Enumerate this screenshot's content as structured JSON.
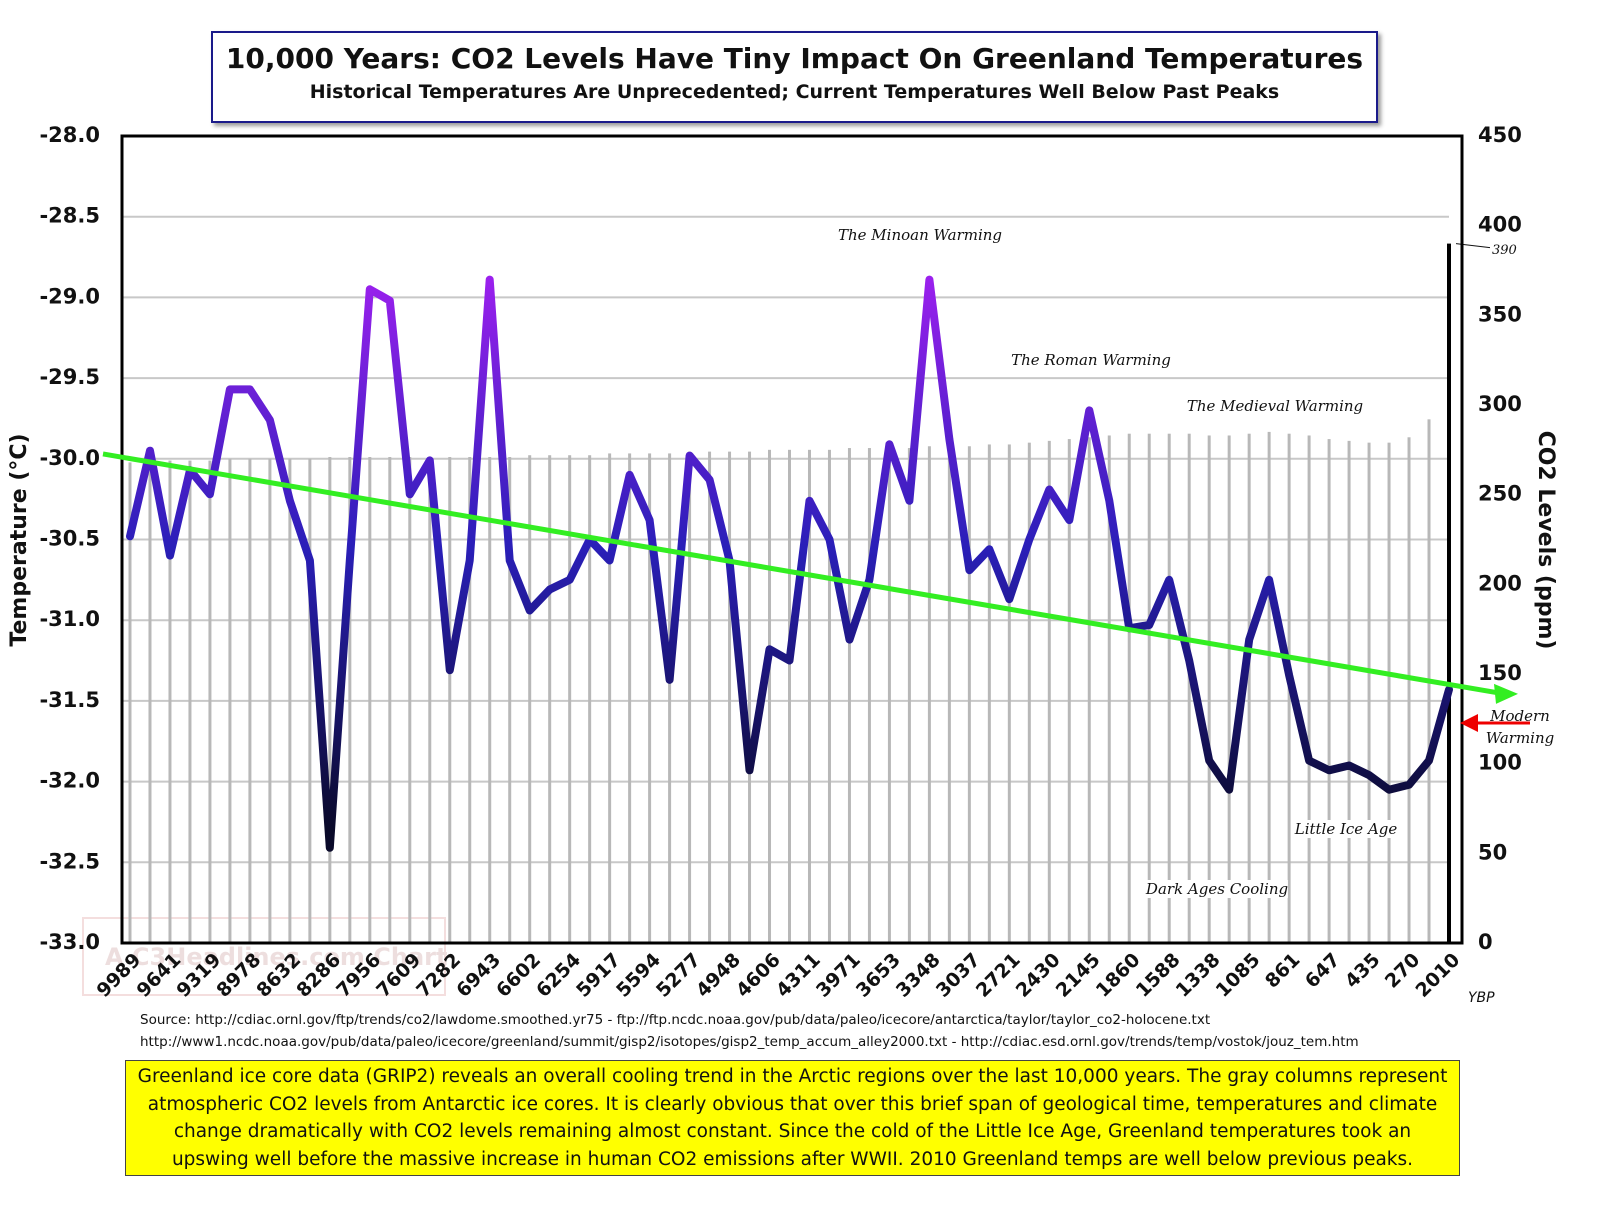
{
  "chart_data": {
    "type": "line",
    "title": "10,000 Years: CO2 Levels Have Tiny Impact On Greenland Temperatures",
    "subtitle": "Historical Temperatures Are Unprecedented; Current Temperatures Well Below Past Peaks",
    "y_label": "Temperature (°C)",
    "y2_label": "CO2 Levels (ppm)",
    "x_label": "YBP",
    "watermark": "A C3Headlines.com Chart",
    "categories": [
      "9989",
      null,
      "9641",
      null,
      "9319",
      null,
      "8978",
      null,
      "8632",
      null,
      "8286",
      null,
      "7956",
      null,
      "7609",
      null,
      "7282",
      null,
      "6943",
      null,
      "6602",
      null,
      "6254",
      null,
      "5917",
      null,
      "5594",
      null,
      "5277",
      null,
      "4948",
      null,
      "4606",
      null,
      "4311",
      null,
      "3971",
      null,
      "3653",
      null,
      "3348",
      null,
      "3037",
      null,
      "2721",
      null,
      "2430",
      null,
      "2145",
      null,
      "1860",
      null,
      "1588",
      null,
      "1338",
      null,
      "1085",
      null,
      "861",
      null,
      "647",
      null,
      "435",
      null,
      "270",
      null,
      "2010"
    ],
    "series": [
      {
        "color": "#2a1fb8",
        "gradient": [
          "#a020f0",
          "#2a1fb8",
          "#0a0a2a"
        ],
        "values": [
          -30.48,
          -29.95,
          -30.6,
          -30.07,
          -30.22,
          -29.57,
          -29.57,
          -29.76,
          -30.26,
          -30.63,
          -32.41,
          -30.63,
          -28.95,
          -29.02,
          -30.22,
          -30.01,
          -31.31,
          -30.63,
          -28.89,
          -30.63,
          -30.94,
          -30.81,
          -30.75,
          -30.5,
          -30.63,
          -30.1,
          -30.38,
          -31.37,
          -29.98,
          -30.13,
          -30.63,
          -31.93,
          -31.18,
          -31.25,
          -30.26,
          -30.5,
          -31.12,
          -30.75,
          -29.91,
          -30.26,
          -28.89,
          -29.88,
          -30.69,
          -30.56,
          -30.87,
          -30.5,
          -30.19,
          -30.38,
          -29.7,
          -30.26,
          -31.05,
          -31.03,
          -30.75,
          -31.25,
          -31.87,
          -32.05,
          -31.12,
          -30.75,
          -31.34,
          -31.87,
          -31.93,
          -31.9,
          -31.96,
          -32.05,
          -32.02,
          -31.87,
          -31.43
        ]
      },
      {
        "axis": "y2",
        "color": "#b8b8b8",
        "last_color": "#000000",
        "values": [
          268,
          268,
          269,
          269,
          269,
          270,
          270,
          270,
          270,
          270,
          271,
          271,
          271,
          271,
          271,
          271,
          271,
          271,
          271,
          271,
          272,
          272,
          272,
          272,
          273,
          273,
          273,
          273,
          274,
          274,
          274,
          274,
          275,
          275,
          275,
          275,
          276,
          276,
          276,
          276,
          277,
          277,
          277,
          278,
          278,
          279,
          280,
          281,
          282,
          283,
          284,
          284,
          284,
          284,
          283,
          283,
          284,
          285,
          284,
          283,
          281,
          280,
          279,
          279,
          282,
          292,
          390
        ],
        "value_label": "390"
      }
    ],
    "trend": {
      "color": "#33ee22",
      "values": [
        -29.97,
        -31.45
      ]
    },
    "ylim": [
      -33,
      -28
    ],
    "yticks": [
      {
        "value": -33,
        "label": "-33.0"
      },
      {
        "value": -32.5,
        "label": "-32.5"
      },
      {
        "value": -32,
        "label": "-32.0"
      },
      {
        "value": -31.5,
        "label": "-31.5"
      },
      {
        "value": -31,
        "label": "-31.0"
      },
      {
        "value": -30.5,
        "label": "-30.5"
      },
      {
        "value": -30,
        "label": "-30.0"
      },
      {
        "value": -29.5,
        "label": "-29.5"
      },
      {
        "value": -29,
        "label": "-29.0"
      },
      {
        "value": -28.5,
        "label": "-28.5"
      },
      {
        "value": -28,
        "label": "-28.0"
      }
    ],
    "y2lim": [
      0,
      450
    ],
    "y2ticks": [
      0,
      50,
      100,
      150,
      200,
      250,
      300,
      350,
      400,
      450
    ],
    "grid": true,
    "annotations": [
      "The Minoan Warming",
      "The Roman Warming",
      "The Medieval Warming",
      "Little Ice Age",
      "Dark Ages Cooling",
      "Modern Warming"
    ],
    "sources": [
      "Source:  http://cdiac.ornl.gov/ftp/trends/co2/lawdome.smoothed.yr75  -  ftp://ftp.ncdc.noaa.gov/pub/data/paleo/icecore/antarctica/taylor/taylor_co2-holocene.txt",
      "http://www1.ncdc.noaa.gov/pub/data/paleo/icecore/greenland/summit/gisp2/isotopes/gisp2_temp_accum_alley2000.txt  -  http://cdiac.esd.ornl.gov/trends/temp/vostok/jouz_tem.htm"
    ],
    "caption": "Greenland ice core data (GRIP2) reveals an overall cooling trend in the Arctic regions over the last 10,000 years. The gray columns represent atmospheric CO2 levels from Antarctic ice cores. It is clearly obvious that over this brief span of geological time, temperatures and climate change dramatically with CO2 levels remaining almost constant.  Since the cold of the Little Ice Age, Greenland temperatures took an upswing well before the massive increase in human CO2 emissions after WWII. 2010 Greenland temps are well below previous peaks."
  }
}
